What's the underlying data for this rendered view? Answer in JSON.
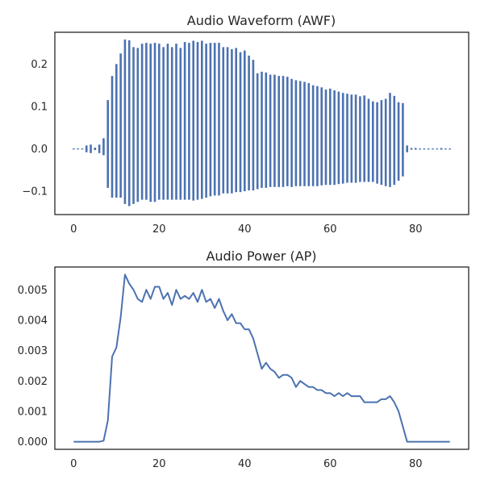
{
  "chart_data": [
    {
      "type": "bar",
      "title": "Audio Waveform (AWF)",
      "xlabel": "",
      "ylabel": "",
      "x_ticks": [
        0,
        20,
        40,
        60,
        80
      ],
      "y_ticks": [
        -0.1,
        0.0,
        0.1,
        0.2
      ],
      "xlim": [
        -4.4,
        92.4
      ],
      "ylim": [
        -0.155,
        0.275
      ],
      "grid": false,
      "color": "#4c72b0",
      "x": [
        0,
        1,
        2,
        3,
        4,
        5,
        6,
        7,
        8,
        9,
        10,
        11,
        12,
        13,
        14,
        15,
        16,
        17,
        18,
        19,
        20,
        21,
        22,
        23,
        24,
        25,
        26,
        27,
        28,
        29,
        30,
        31,
        32,
        33,
        34,
        35,
        36,
        37,
        38,
        39,
        40,
        41,
        42,
        43,
        44,
        45,
        46,
        47,
        48,
        49,
        50,
        51,
        52,
        53,
        54,
        55,
        56,
        57,
        58,
        59,
        60,
        61,
        62,
        63,
        64,
        65,
        66,
        67,
        68,
        69,
        70,
        71,
        72,
        73,
        74,
        75,
        76,
        77,
        78,
        79,
        80,
        81,
        82,
        83,
        84,
        85,
        86,
        87,
        88
      ],
      "max": [
        0.001,
        0.001,
        0.001,
        0.008,
        0.01,
        0.003,
        0.01,
        0.025,
        0.115,
        0.172,
        0.2,
        0.225,
        0.258,
        0.256,
        0.24,
        0.238,
        0.248,
        0.25,
        0.248,
        0.25,
        0.248,
        0.24,
        0.248,
        0.24,
        0.248,
        0.238,
        0.252,
        0.25,
        0.255,
        0.252,
        0.255,
        0.248,
        0.25,
        0.25,
        0.25,
        0.24,
        0.24,
        0.235,
        0.238,
        0.228,
        0.232,
        0.22,
        0.21,
        0.178,
        0.182,
        0.18,
        0.175,
        0.175,
        0.172,
        0.172,
        0.17,
        0.165,
        0.162,
        0.16,
        0.158,
        0.155,
        0.15,
        0.148,
        0.145,
        0.14,
        0.142,
        0.138,
        0.135,
        0.132,
        0.13,
        0.128,
        0.128,
        0.124,
        0.126,
        0.118,
        0.112,
        0.11,
        0.115,
        0.118,
        0.132,
        0.125,
        0.11,
        0.108,
        0.008,
        0.002,
        0.002,
        0.001,
        0.001,
        0.001,
        0.001,
        0.001,
        0.002,
        0.001,
        0.001
      ],
      "min": [
        -0.001,
        -0.001,
        -0.001,
        -0.008,
        -0.01,
        -0.003,
        -0.01,
        -0.015,
        -0.092,
        -0.115,
        -0.115,
        -0.115,
        -0.13,
        -0.135,
        -0.13,
        -0.125,
        -0.12,
        -0.12,
        -0.125,
        -0.125,
        -0.12,
        -0.12,
        -0.12,
        -0.12,
        -0.12,
        -0.12,
        -0.12,
        -0.12,
        -0.122,
        -0.12,
        -0.118,
        -0.115,
        -0.112,
        -0.11,
        -0.11,
        -0.105,
        -0.105,
        -0.105,
        -0.102,
        -0.102,
        -0.1,
        -0.098,
        -0.098,
        -0.095,
        -0.092,
        -0.092,
        -0.09,
        -0.09,
        -0.09,
        -0.09,
        -0.088,
        -0.09,
        -0.088,
        -0.088,
        -0.088,
        -0.088,
        -0.088,
        -0.088,
        -0.086,
        -0.085,
        -0.085,
        -0.085,
        -0.083,
        -0.082,
        -0.08,
        -0.08,
        -0.08,
        -0.078,
        -0.078,
        -0.078,
        -0.078,
        -0.082,
        -0.085,
        -0.088,
        -0.09,
        -0.085,
        -0.075,
        -0.065,
        -0.008,
        -0.002,
        -0.002,
        -0.001,
        -0.001,
        -0.001,
        -0.001,
        -0.001,
        -0.002,
        -0.001,
        -0.001
      ]
    },
    {
      "type": "line",
      "title": "Audio Power (AP)",
      "xlabel": "",
      "ylabel": "",
      "x_ticks": [
        0,
        20,
        40,
        60,
        80
      ],
      "y_ticks": [
        "0.000",
        "0.001",
        "0.002",
        "0.003",
        "0.004",
        "0.005"
      ],
      "y_tick_values": [
        0,
        0.001,
        0.002,
        0.003,
        0.004,
        0.005
      ],
      "xlim": [
        -4.4,
        92.4
      ],
      "ylim": [
        -0.00025,
        0.00575
      ],
      "grid": false,
      "color": "#4c72b0",
      "x": [
        0,
        1,
        2,
        3,
        4,
        5,
        6,
        7,
        8,
        9,
        10,
        11,
        12,
        13,
        14,
        15,
        16,
        17,
        18,
        19,
        20,
        21,
        22,
        23,
        24,
        25,
        26,
        27,
        28,
        29,
        30,
        31,
        32,
        33,
        34,
        35,
        36,
        37,
        38,
        39,
        40,
        41,
        42,
        43,
        44,
        45,
        46,
        47,
        48,
        49,
        50,
        51,
        52,
        53,
        54,
        55,
        56,
        57,
        58,
        59,
        60,
        61,
        62,
        63,
        64,
        65,
        66,
        67,
        68,
        69,
        70,
        71,
        72,
        73,
        74,
        75,
        76,
        77,
        78,
        79,
        80,
        81,
        82,
        83,
        84,
        85,
        86,
        87,
        88
      ],
      "y": [
        0,
        0,
        0,
        0,
        0,
        0,
        0,
        3e-05,
        0.0007,
        0.0028,
        0.0031,
        0.0041,
        0.0055,
        0.0052,
        0.005,
        0.0047,
        0.0046,
        0.005,
        0.0047,
        0.0051,
        0.0051,
        0.0047,
        0.0049,
        0.0045,
        0.005,
        0.0047,
        0.0048,
        0.0047,
        0.0049,
        0.0046,
        0.005,
        0.0046,
        0.0047,
        0.0044,
        0.0047,
        0.0043,
        0.004,
        0.0042,
        0.0039,
        0.0039,
        0.0037,
        0.0037,
        0.0034,
        0.0029,
        0.0024,
        0.0026,
        0.0024,
        0.0023,
        0.0021,
        0.0022,
        0.0022,
        0.0021,
        0.0018,
        0.002,
        0.0019,
        0.0018,
        0.0018,
        0.0017,
        0.0017,
        0.0016,
        0.0016,
        0.0015,
        0.0016,
        0.0015,
        0.0016,
        0.0015,
        0.0015,
        0.0015,
        0.0013,
        0.0013,
        0.0013,
        0.0013,
        0.0014,
        0.0014,
        0.0015,
        0.0013,
        0.001,
        0.0005,
        0,
        0,
        0,
        0,
        0,
        0,
        0,
        0,
        0,
        0,
        0
      ]
    }
  ]
}
